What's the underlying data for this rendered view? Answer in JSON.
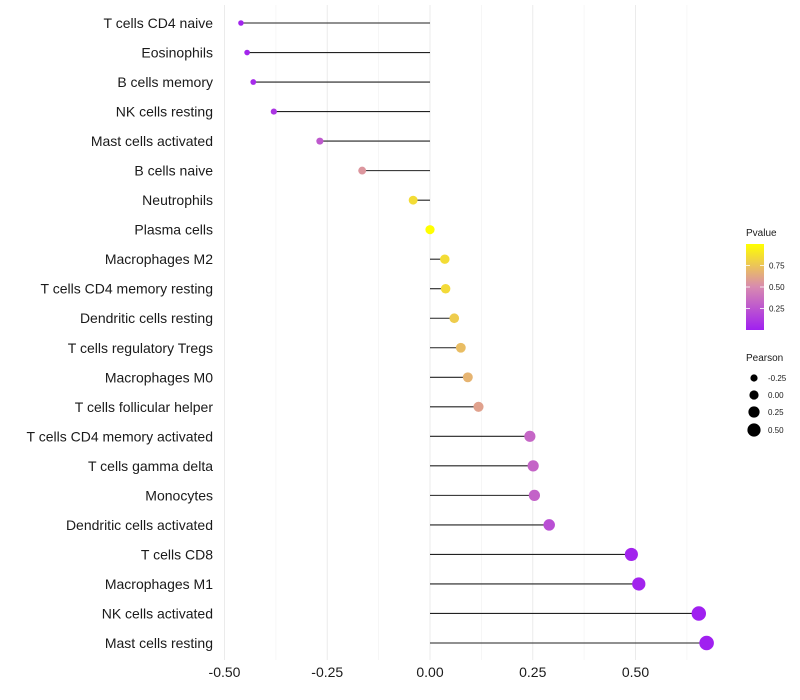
{
  "chart_data": {
    "type": "lollipop",
    "title": "",
    "xlabel": "",
    "ylabel": "",
    "xlim": [
      -0.5,
      0.68
    ],
    "x_ticks": [
      -0.5,
      -0.25,
      0.0,
      0.25,
      0.5
    ],
    "x_tick_labels": [
      "-0.50",
      "-0.25",
      "0.00",
      "0.25",
      "0.50"
    ],
    "grid": true,
    "categories": [
      "T cells CD4 naive",
      "Eosinophils",
      "B cells memory",
      "NK cells resting",
      "Mast cells activated",
      "B cells naive",
      "Neutrophils",
      "Plasma cells",
      "Macrophages M2",
      "T cells CD4 memory resting",
      "Dendritic cells resting",
      "T cells regulatory  Tregs ",
      "Macrophages M0",
      "T cells follicular helper",
      "T cells CD4 memory activated",
      "T cells gamma delta",
      "Monocytes",
      "Dendritic cells activated",
      "T cells CD8",
      "Macrophages M1",
      "NK cells activated",
      "Mast cells resting"
    ],
    "series": [
      {
        "name": "Pearson",
        "values": [
          -0.46,
          -0.445,
          -0.43,
          -0.38,
          -0.268,
          -0.165,
          -0.041,
          0.0,
          0.036,
          0.038,
          0.059,
          0.075,
          0.092,
          0.118,
          0.243,
          0.251,
          0.254,
          0.29,
          0.49,
          0.508,
          0.654,
          0.673
        ]
      },
      {
        "name": "Pvalue",
        "values": [
          0.02,
          0.03,
          0.05,
          0.1,
          0.27,
          0.55,
          0.85,
          1.0,
          0.85,
          0.84,
          0.78,
          0.72,
          0.68,
          0.6,
          0.33,
          0.32,
          0.31,
          0.22,
          0.02,
          0.02,
          0.0,
          0.0
        ]
      }
    ],
    "legends": {
      "color": {
        "title": "Pvalue",
        "ticks": [
          0.25,
          0.5,
          0.75
        ],
        "tick_labels": [
          "0.25",
          "0.50",
          "0.75"
        ],
        "range": [
          0,
          1
        ],
        "low_color": "#A020F0",
        "mid_color": "#D88AB0",
        "high_color": "#FFFF00",
        "placement": "right"
      },
      "size": {
        "title": "Pearson",
        "values": [
          -0.25,
          0.0,
          0.25,
          0.5
        ],
        "labels": [
          "-0.25",
          "0.00",
          "0.25",
          "0.50"
        ],
        "placement": "right"
      }
    },
    "colors": {
      "stem": "#222222",
      "grid": "#ebebeb"
    }
  }
}
